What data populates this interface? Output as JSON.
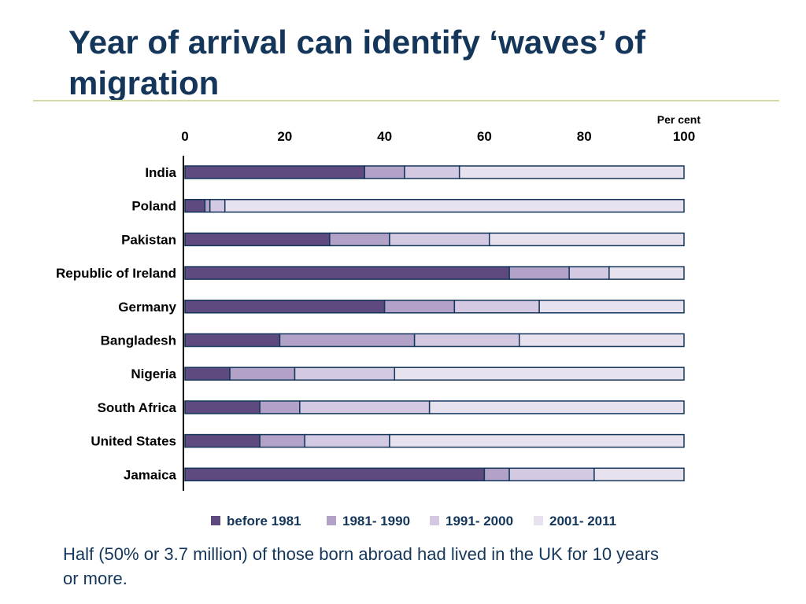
{
  "slide": {
    "title": "Year of arrival can identify ‘waves’ of migration",
    "caption": " Half (50% or 3.7 million) of those born abroad had lived in the UK for 10 years or more."
  },
  "chart_data": {
    "type": "bar",
    "orientation": "horizontal",
    "stacked": true,
    "unit_label": "Per cent",
    "xlim": [
      0,
      100
    ],
    "xticks": [
      0,
      20,
      40,
      60,
      80,
      100
    ],
    "x_axis_position": "top",
    "legend_position": "bottom",
    "grid": false,
    "categories": [
      "India",
      "Poland",
      "Pakistan",
      "Republic of Ireland",
      "Germany",
      "Bangladesh",
      "Nigeria",
      "South Africa",
      "United States",
      "Jamaica"
    ],
    "series": [
      {
        "name": "before 1981",
        "color": "#5e4a7e",
        "values": [
          36,
          4,
          29,
          65,
          40,
          19,
          9,
          15,
          15,
          60
        ]
      },
      {
        "name": "1981- 1990",
        "color": "#b3a2c8",
        "values": [
          8,
          1,
          12,
          12,
          14,
          27,
          13,
          8,
          9,
          5
        ]
      },
      {
        "name": "1991- 2000",
        "color": "#d3c9e3",
        "values": [
          11,
          3,
          20,
          8,
          17,
          21,
          20,
          26,
          17,
          17
        ]
      },
      {
        "name": "2001- 2011",
        "color": "#e8e2ee",
        "values": [
          45,
          92,
          39,
          15,
          29,
          33,
          58,
          51,
          59,
          18
        ]
      }
    ]
  }
}
